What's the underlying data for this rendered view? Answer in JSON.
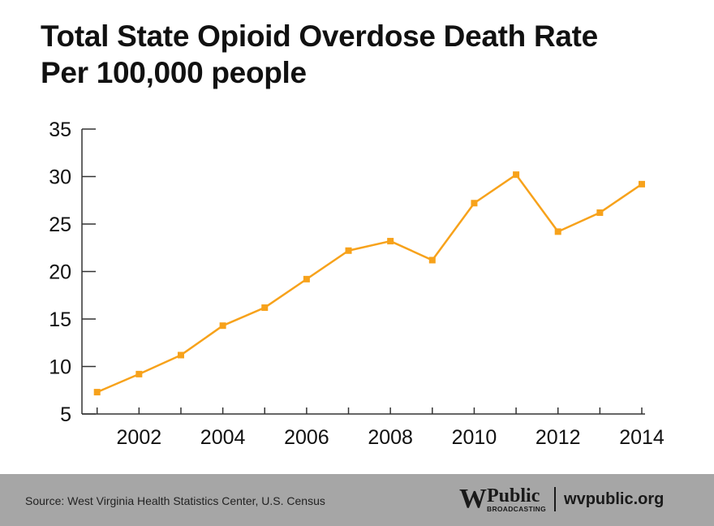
{
  "title_line1": "Total State Opioid Overdose Death Rate",
  "title_line2": "Per 100,000 people",
  "footer": {
    "source": "Source: West Virginia Health Statistics Center, U.S. Census",
    "logo_mark": "W",
    "logo_public": "Public",
    "logo_broadcasting": "BROADCASTING",
    "url": "wvpublic.org"
  },
  "colors": {
    "line": "#f7a21b",
    "axis": "#333333",
    "footer_bg": "#a6a6a6"
  },
  "chart_data": {
    "type": "line",
    "title": "Total State Opioid Overdose Death Rate Per 100,000 people",
    "x": [
      2001,
      2002,
      2003,
      2004,
      2005,
      2006,
      2007,
      2008,
      2009,
      2010,
      2011,
      2012,
      2013,
      2014
    ],
    "series": [
      {
        "values": [
          7.3,
          9.2,
          11.2,
          14.3,
          16.2,
          19.2,
          22.2,
          23.2,
          21.2,
          27.2,
          30.2,
          24.2,
          26.2,
          29.2
        ]
      }
    ],
    "xticks": [
      2002,
      2004,
      2006,
      2008,
      2010,
      2012,
      2014
    ],
    "yticks": [
      5,
      10,
      15,
      20,
      25,
      30,
      35
    ],
    "xlim": [
      2001,
      2014
    ],
    "ylim": [
      5,
      35
    ],
    "grid": false,
    "marker": "square"
  }
}
